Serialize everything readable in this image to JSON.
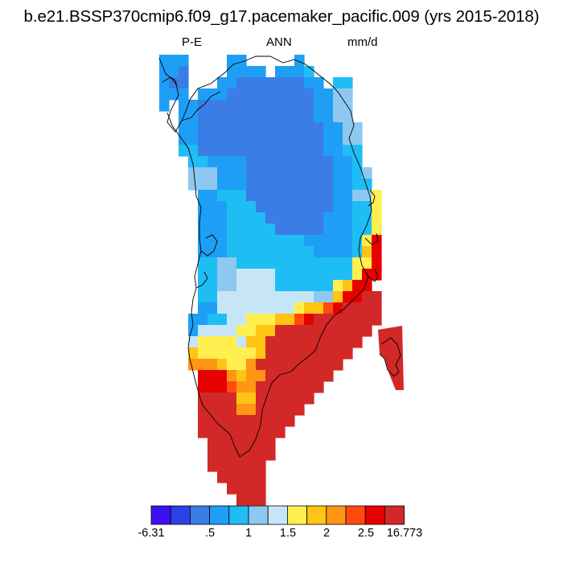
{
  "title": "b.e21.BSSP370cmip6.f09_g17.pacemaker_pacific.009 (yrs 2015-2018)",
  "left_label": "P-E",
  "center_label": "ANN",
  "right_label": "mm/d",
  "colorbar": {
    "colors": [
      "#3c0ff5",
      "#2d41e6",
      "#3a7de6",
      "#1e9ff5",
      "#1ebef5",
      "#8ec8f0",
      "#c6e6f8",
      "#fff050",
      "#ffc414",
      "#ff9614",
      "#ff4b0f",
      "#e60000",
      "#d22828"
    ],
    "tick_labels": [
      "-6.31",
      ".5",
      "1",
      "1.5",
      "2",
      "2.5",
      "16.773"
    ]
  }
}
